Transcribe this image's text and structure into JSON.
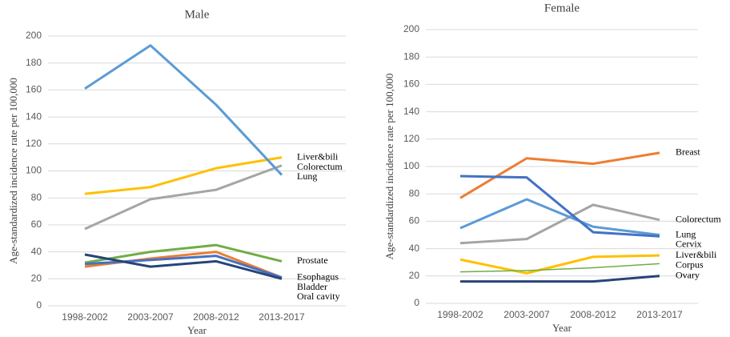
{
  "chart_data": [
    {
      "type": "line",
      "title": "Male",
      "x_label": "Year",
      "y_label": "Age-standardized incidence rate per 100,000",
      "categories": [
        "1998-2002",
        "2003-2007",
        "2008-2012",
        "2013-2017"
      ],
      "ylim": [
        0,
        200
      ],
      "yticks": [
        0,
        20,
        40,
        60,
        80,
        100,
        120,
        140,
        160,
        180,
        200
      ],
      "grid": true,
      "series": [
        {
          "name": "Liver&bili",
          "color": "#ffc000",
          "values": [
            83,
            88,
            102,
            110
          ]
        },
        {
          "name": "Colorectum",
          "color": "#a5a5a5",
          "values": [
            57,
            79,
            86,
            104
          ]
        },
        {
          "name": "Lung",
          "color": "#5b9bd5",
          "values": [
            161,
            193,
            149,
            97
          ]
        },
        {
          "name": "Prostate",
          "color": "#70ad47",
          "values": [
            32,
            40,
            45,
            33
          ]
        },
        {
          "name": "Esophagus",
          "color": "#ed7d31",
          "values": [
            29,
            35,
            40,
            21
          ]
        },
        {
          "name": "Bladder",
          "color": "#4472c4",
          "values": [
            31,
            34,
            37,
            21
          ]
        },
        {
          "name": "Oral cavity",
          "color": "#264478",
          "values": [
            38,
            29,
            33,
            20
          ]
        }
      ]
    },
    {
      "type": "line",
      "title": "Female",
      "x_label": "Year",
      "y_label": "Age-standardized incidence rate per 100,000",
      "categories": [
        "1998-2002",
        "2003-2007",
        "2008-2012",
        "2013-2017"
      ],
      "ylim": [
        0,
        200
      ],
      "yticks": [
        0,
        20,
        40,
        60,
        80,
        100,
        120,
        140,
        160,
        180,
        200
      ],
      "grid": true,
      "series": [
        {
          "name": "Breast",
          "color": "#ed7d31",
          "values": [
            77,
            106,
            102,
            110
          ]
        },
        {
          "name": "Colorectum",
          "color": "#a5a5a5",
          "values": [
            44,
            47,
            72,
            61
          ]
        },
        {
          "name": "Lung",
          "color": "#5b9bd5",
          "values": [
            55,
            76,
            56,
            50
          ]
        },
        {
          "name": "Cervix",
          "color": "#4472c4",
          "values": [
            93,
            92,
            52,
            49
          ]
        },
        {
          "name": "Liver&bili",
          "color": "#ffc000",
          "values": [
            32,
            22,
            34,
            35
          ]
        },
        {
          "name": "Corpus",
          "color": "#70ad47",
          "values": [
            23,
            24,
            26,
            29
          ]
        },
        {
          "name": "Ovary",
          "color": "#264478",
          "values": [
            16,
            16,
            16,
            20
          ]
        }
      ]
    }
  ]
}
